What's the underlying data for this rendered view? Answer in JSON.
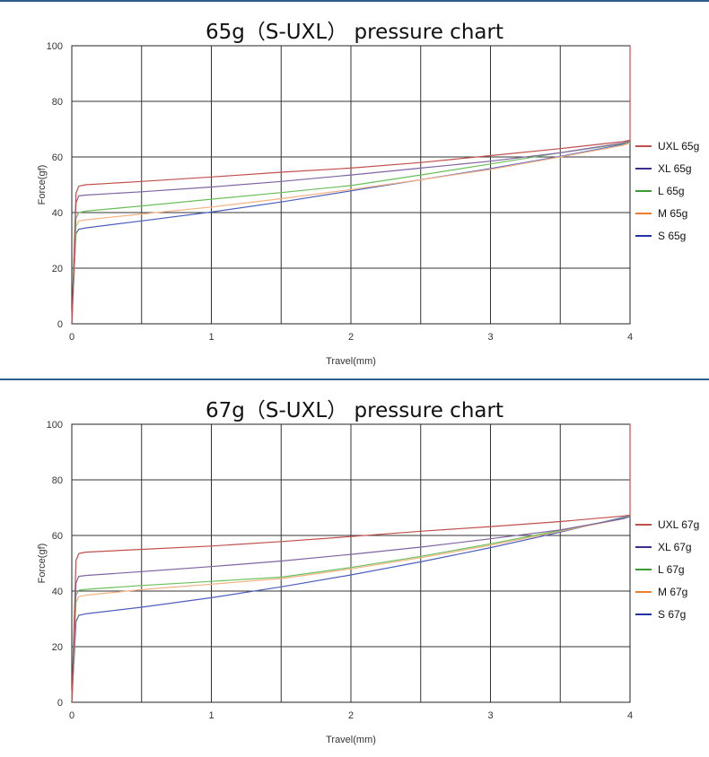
{
  "chart_data": [
    {
      "type": "line",
      "title": "65g（S-UXL） pressure chart",
      "xlabel": "Travel(mm)",
      "ylabel": "Force(gf)",
      "xlim": [
        0,
        4
      ],
      "ylim": [
        0,
        100
      ],
      "xticks": [
        "0",
        "1",
        "2",
        "3",
        "4"
      ],
      "yticks": [
        "0",
        "20",
        "40",
        "60",
        "80",
        "100"
      ],
      "grid": true,
      "legend_position": "right",
      "series": [
        {
          "name": "UXL 65g",
          "color": "#c0504d",
          "legend_color": "#c0504d",
          "x": [
            0,
            0.03,
            0.05,
            0.1,
            0.5,
            1,
            1.5,
            2,
            2.5,
            3,
            3.5,
            3.95,
            4,
            4
          ],
          "y": [
            0,
            47,
            49.5,
            50,
            51.2,
            52.8,
            54.5,
            56,
            58,
            60.5,
            63,
            65.5,
            66,
            100
          ]
        },
        {
          "name": "XL 65g",
          "color": "#8064a2",
          "legend_color": "#3c2d8f",
          "x": [
            0,
            0.03,
            0.05,
            0.1,
            0.5,
            1,
            1.5,
            2,
            2.5,
            3,
            3.5,
            3.95,
            4
          ],
          "y": [
            0,
            43.5,
            46,
            46.3,
            47.5,
            49.2,
            51.2,
            53.5,
            56,
            58.5,
            61.5,
            65,
            65.6
          ]
        },
        {
          "name": "L 65g",
          "color": "#6bbf59",
          "legend_color": "#3a9b35",
          "x": [
            0,
            0.03,
            0.05,
            0.1,
            0.5,
            1,
            1.5,
            2,
            2.5,
            3,
            3.5,
            3.95,
            4
          ],
          "y": [
            0,
            38,
            40,
            40.5,
            42.4,
            44.8,
            47.2,
            49.7,
            53.5,
            57.5,
            61.5,
            64.8,
            65.3
          ]
        },
        {
          "name": "M 65g",
          "color": "#f4b183",
          "legend_color": "#ed7d31",
          "x": [
            0,
            0.03,
            0.05,
            0.1,
            0.5,
            1,
            1.5,
            2,
            2.5,
            3,
            3.5,
            3.95,
            4
          ],
          "y": [
            0,
            35,
            37,
            37.4,
            39.5,
            42,
            45,
            48.3,
            51.8,
            55.5,
            60,
            64.2,
            65
          ]
        },
        {
          "name": "S 65g",
          "color": "#4c5fbf",
          "legend_color": "#2233a8",
          "x": [
            0,
            0.03,
            0.05,
            0.1,
            0.5,
            1,
            1.5,
            2,
            2.5,
            3,
            3.5,
            3.95,
            4
          ],
          "y": [
            0,
            32.5,
            34,
            34.5,
            37,
            40.2,
            43.8,
            47.8,
            51.8,
            55.8,
            60.2,
            64.5,
            65
          ]
        }
      ]
    },
    {
      "type": "line",
      "title": "67g（S-UXL） pressure chart",
      "xlabel": "Travel(mm)",
      "ylabel": "Force(gf)",
      "xlim": [
        0,
        4
      ],
      "ylim": [
        0,
        100
      ],
      "xticks": [
        "0",
        "1",
        "2",
        "3",
        "4"
      ],
      "yticks": [
        "0",
        "20",
        "40",
        "60",
        "80",
        "100"
      ],
      "grid": true,
      "legend_position": "right",
      "series": [
        {
          "name": "UXL 67g",
          "color": "#c0504d",
          "legend_color": "#c0504d",
          "x": [
            0,
            0.03,
            0.05,
            0.1,
            0.5,
            1,
            1.5,
            2,
            2.5,
            3,
            3.5,
            3.95,
            4,
            4
          ],
          "y": [
            0,
            51,
            53.5,
            54,
            55,
            56.2,
            57.8,
            59.6,
            61.5,
            63.2,
            65,
            67,
            67.3,
            100
          ]
        },
        {
          "name": "XL 67g",
          "color": "#8064a2",
          "legend_color": "#3c2d8f",
          "x": [
            0,
            0.03,
            0.05,
            0.1,
            0.5,
            1,
            1.5,
            2,
            2.5,
            3,
            3.5,
            3.95,
            4
          ],
          "y": [
            0,
            43,
            45.3,
            45.6,
            47,
            48.8,
            50.8,
            53.2,
            55.8,
            58.8,
            62,
            66,
            66.8
          ]
        },
        {
          "name": "L 67g",
          "color": "#6bbf59",
          "legend_color": "#3a9b35",
          "x": [
            0,
            0.03,
            0.05,
            0.1,
            0.5,
            1,
            1.5,
            2,
            2.5,
            3,
            3.5,
            3.95,
            4
          ],
          "y": [
            0,
            38.5,
            40.3,
            40.6,
            42,
            43.5,
            45,
            48.5,
            52.5,
            57,
            61.8,
            66.2,
            67
          ]
        },
        {
          "name": "M 67g",
          "color": "#f4b183",
          "legend_color": "#ed7d31",
          "x": [
            0,
            0.03,
            0.05,
            0.1,
            0.5,
            1,
            1.5,
            2,
            2.5,
            3,
            3.5,
            3.95,
            4
          ],
          "y": [
            0,
            36,
            38,
            38.5,
            40.5,
            42.5,
            44.5,
            48,
            52,
            56.5,
            61.5,
            66,
            66.8
          ]
        },
        {
          "name": "S 67g",
          "color": "#4c5fbf",
          "legend_color": "#2233a8",
          "x": [
            0,
            0.03,
            0.05,
            0.1,
            0.5,
            1,
            1.5,
            2,
            2.5,
            3,
            3.5,
            3.95,
            4
          ],
          "y": [
            0,
            29,
            31.3,
            31.8,
            34.2,
            37.6,
            41.5,
            45.8,
            50.5,
            55.6,
            61.2,
            66.5,
            67
          ]
        }
      ]
    }
  ]
}
